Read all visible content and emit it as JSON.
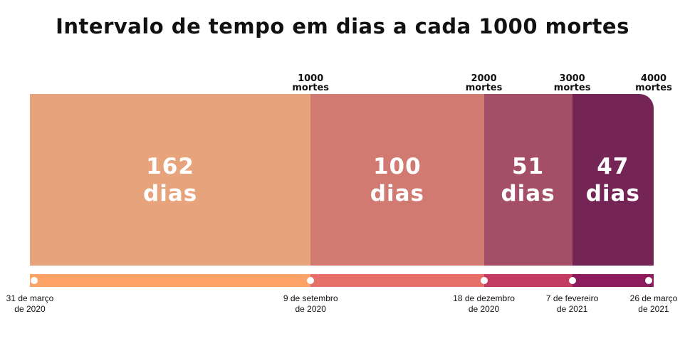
{
  "title": "Intervalo de tempo em dias a cada 1000 mortes",
  "chart_data": {
    "type": "bar",
    "orientation": "horizontal-stacked-timeline",
    "title": "Intervalo de tempo em dias a cada 1000 mortes",
    "segments": [
      {
        "value": 162,
        "number": "162",
        "unit": "dias",
        "color": "#E7A37B",
        "timeline_color": "#FDA368"
      },
      {
        "value": 100,
        "number": "100",
        "unit": "dias",
        "color": "#D07A72",
        "timeline_color": "#E5706A"
      },
      {
        "value": 51,
        "number": "51",
        "unit": "dias",
        "color": "#A54E68",
        "timeline_color": "#C23C62"
      },
      {
        "value": 47,
        "number": "47",
        "unit": "dias",
        "color": "#742556",
        "timeline_color": "#8C1C5E"
      }
    ],
    "milestones": [
      {
        "line1": "1000",
        "line2": "mortes"
      },
      {
        "line1": "2000",
        "line2": "mortes"
      },
      {
        "line1": "3000",
        "line2": "mortes"
      },
      {
        "line1": "4000",
        "line2": "mortes"
      }
    ],
    "dates": [
      {
        "line1": "31 de março",
        "line2": "de 2020"
      },
      {
        "line1": "9 de setembro",
        "line2": "de 2020"
      },
      {
        "line1": "18 de dezembro",
        "line2": "de 2020"
      },
      {
        "line1": "7 de fevereiro",
        "line2": "de 2021"
      },
      {
        "line1": "26 de março",
        "line2": "de 2021"
      }
    ]
  }
}
